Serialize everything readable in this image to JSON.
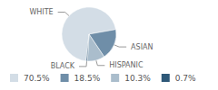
{
  "chart_data": {
    "type": "pie",
    "categories": [
      "WHITE",
      "ASIAN",
      "HISPANIC",
      "BLACK"
    ],
    "values": [
      70.5,
      18.5,
      10.3,
      0.7
    ],
    "value_labels": [
      "70.5%",
      "18.5%",
      "10.3%",
      "0.7%"
    ],
    "colors": [
      "#d3dde6",
      "#6f8ea8",
      "#aabdcc",
      "#2e5878"
    ],
    "legend": "bottom"
  }
}
